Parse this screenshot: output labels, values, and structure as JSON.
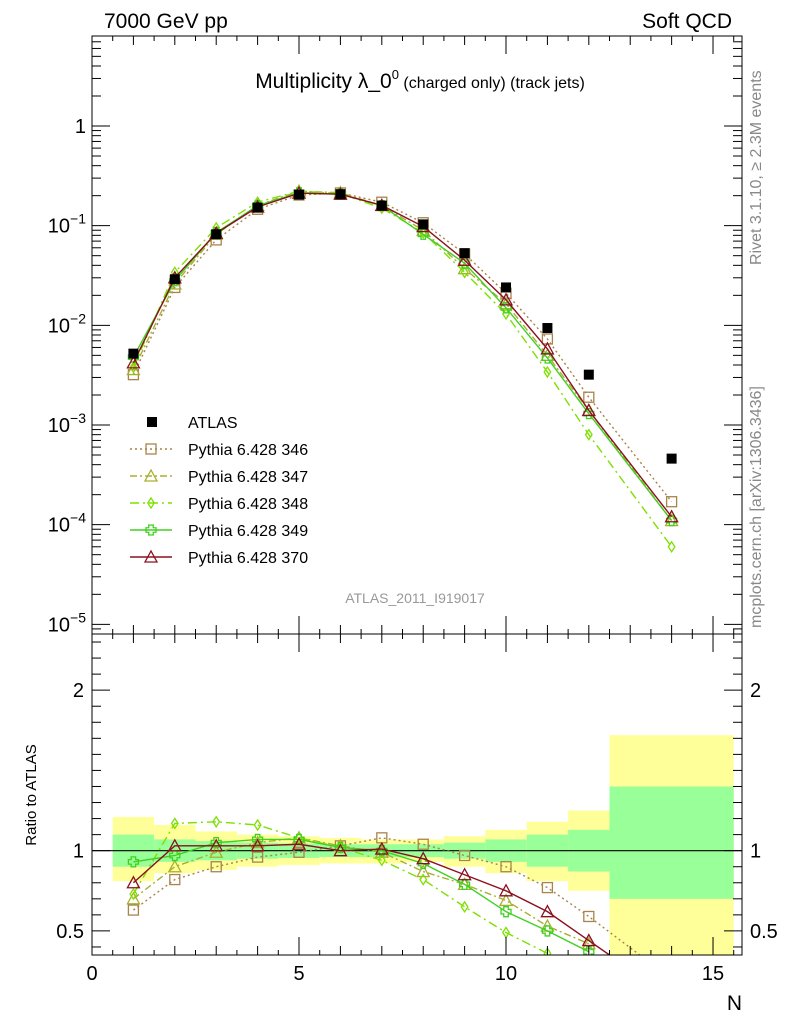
{
  "header": {
    "left": "7000 GeV pp",
    "right": "Soft QCD",
    "title_main": "Multiplicity λ_0",
    "title_sup": "0",
    "title_sub": " (charged only) (track jets)",
    "ref_id": "ATLAS_2011_I919017",
    "side_top": "Rivet 3.1.10, ≥ 2.3M events",
    "side_bottom": "mcplots.cern.ch [arXiv:1306.3436]"
  },
  "chart_data": [
    {
      "type": "line",
      "panel": "main",
      "yscale": "log",
      "xlim": [
        0,
        15.7
      ],
      "ylim": [
        8e-06,
        8
      ],
      "ytick_labels": [
        "1",
        "10",
        "10",
        "10",
        "10",
        "10"
      ],
      "ytick_exponents": [
        "",
        "−1",
        "−2",
        "−3",
        "−4",
        "−5"
      ],
      "legend_position": "middle-left",
      "data": {
        "x": [
          1,
          2,
          3,
          4,
          5,
          6,
          7,
          8,
          9,
          10,
          11,
          12,
          14
        ],
        "y": [
          0.0052,
          0.029,
          0.082,
          0.152,
          0.205,
          0.207,
          0.159,
          0.103,
          0.053,
          0.024,
          0.0094,
          0.0032,
          0.00046
        ],
        "name": "ATLAS",
        "color": "#000000"
      },
      "series": [
        {
          "name": "Pythia 6.428 346",
          "color": "#a8844a",
          "marker": "square",
          "dash": "2,3",
          "values": [
            0.0032,
            0.024,
            0.072,
            0.146,
            0.203,
            0.213,
            0.172,
            0.107,
            0.052,
            0.021,
            0.0073,
            0.0019,
            0.00017
          ]
        },
        {
          "name": "Pythia 6.428 347",
          "color": "#a8b030",
          "marker": "triangle",
          "dash": "7,3,2,3",
          "values": [
            0.0036,
            0.026,
            0.082,
            0.16,
            0.222,
            0.214,
            0.159,
            0.09,
            0.037,
            0.0165,
            0.005,
            0.0014,
            0.00011
          ]
        },
        {
          "name": "Pythia 6.428 348",
          "color": "#7ee000",
          "marker": "diamond",
          "dash": "9,4,2,4",
          "values": [
            0.0038,
            0.034,
            0.095,
            0.172,
            0.222,
            0.21,
            0.15,
            0.085,
            0.034,
            0.013,
            0.0034,
            0.0008,
            6e-05
          ]
        },
        {
          "name": "Pythia 6.428 349",
          "color": "#40d020",
          "marker": "cross",
          "dash": "",
          "values": [
            0.0048,
            0.028,
            0.085,
            0.159,
            0.214,
            0.207,
            0.159,
            0.082,
            0.042,
            0.015,
            0.0047,
            0.0013,
            0.00011
          ]
        },
        {
          "name": "Pythia 6.428 370",
          "color": "#8b1020",
          "marker": "triangle",
          "dash": "",
          "values": [
            0.0042,
            0.03,
            0.084,
            0.154,
            0.212,
            0.207,
            0.16,
            0.098,
            0.045,
            0.018,
            0.0058,
            0.0014,
            0.00012
          ]
        }
      ]
    },
    {
      "type": "line",
      "panel": "ratio",
      "ylabel": "Ratio to ATLAS",
      "xlabel": "N",
      "xlim": [
        0,
        15.7
      ],
      "ylim": [
        0.35,
        2.35
      ],
      "xticks": [
        0,
        5,
        10,
        15
      ],
      "yticks": [
        0.5,
        1,
        2
      ],
      "bands": [
        {
          "x0": 0.5,
          "x1": 1.5,
          "y_lo": 0.81,
          "y_hi": 1.21,
          "g_lo": 0.9,
          "g_hi": 1.1
        },
        {
          "x0": 1.5,
          "x1": 2.5,
          "y_lo": 0.86,
          "y_hi": 1.16,
          "g_lo": 0.93,
          "g_hi": 1.07
        },
        {
          "x0": 2.5,
          "x1": 3.5,
          "y_lo": 0.88,
          "y_hi": 1.12,
          "g_lo": 0.94,
          "g_hi": 1.06
        },
        {
          "x0": 3.5,
          "x1": 4.5,
          "y_lo": 0.9,
          "y_hi": 1.1,
          "g_lo": 0.95,
          "g_hi": 1.05
        },
        {
          "x0": 4.5,
          "x1": 5.5,
          "y_lo": 0.91,
          "y_hi": 1.09,
          "g_lo": 0.955,
          "g_hi": 1.045
        },
        {
          "x0": 5.5,
          "x1": 6.5,
          "y_lo": 0.92,
          "y_hi": 1.08,
          "g_lo": 0.96,
          "g_hi": 1.04
        },
        {
          "x0": 6.5,
          "x1": 7.5,
          "y_lo": 0.92,
          "y_hi": 1.07,
          "g_lo": 0.96,
          "g_hi": 1.04
        },
        {
          "x0": 7.5,
          "x1": 8.5,
          "y_lo": 0.93,
          "y_hi": 1.07,
          "g_lo": 0.96,
          "g_hi": 1.04
        },
        {
          "x0": 8.5,
          "x1": 9.5,
          "y_lo": 0.9,
          "y_hi": 1.09,
          "g_lo": 0.95,
          "g_hi": 1.05
        },
        {
          "x0": 9.5,
          "x1": 10.5,
          "y_lo": 0.86,
          "y_hi": 1.13,
          "g_lo": 0.93,
          "g_hi": 1.07
        },
        {
          "x0": 10.5,
          "x1": 11.5,
          "y_lo": 0.81,
          "y_hi": 1.18,
          "g_lo": 0.9,
          "g_hi": 1.1
        },
        {
          "x0": 11.5,
          "x1": 12.5,
          "y_lo": 0.75,
          "y_hi": 1.25,
          "g_lo": 0.87,
          "g_hi": 1.13
        },
        {
          "x0": 12.5,
          "x1": 15.5,
          "y_lo": 0.0,
          "y_hi": 1.72,
          "g_lo": 0.7,
          "g_hi": 1.4
        }
      ],
      "series": [
        {
          "name": "Pythia 6.428 346",
          "color": "#a8844a",
          "marker": "square",
          "dash": "2,3",
          "x": [
            1,
            2,
            3,
            4,
            5,
            6,
            7,
            8,
            9,
            10,
            11,
            12,
            14
          ],
          "values": [
            0.63,
            0.82,
            0.9,
            0.96,
            0.99,
            1.03,
            1.08,
            1.04,
            0.97,
            0.9,
            0.77,
            0.59,
            0.2
          ]
        },
        {
          "name": "Pythia 6.428 347",
          "color": "#a8b030",
          "marker": "triangle",
          "dash": "7,3,2,3",
          "x": [
            1,
            2,
            3,
            4,
            5,
            6,
            7,
            8,
            9,
            10,
            11,
            12
          ],
          "values": [
            0.7,
            0.9,
            0.99,
            1.05,
            1.08,
            1.03,
            0.99,
            0.87,
            0.79,
            0.69,
            0.53,
            0.42
          ]
        },
        {
          "name": "Pythia 6.428 348",
          "color": "#7ee000",
          "marker": "diamond",
          "dash": "9,4,2,4",
          "x": [
            1,
            2,
            3,
            4,
            5,
            6,
            7,
            8,
            9,
            10,
            11,
            12
          ],
          "values": [
            0.73,
            1.17,
            1.18,
            1.16,
            1.08,
            1.02,
            0.94,
            0.82,
            0.65,
            0.49,
            0.36,
            0.2
          ]
        },
        {
          "name": "Pythia 6.428 349",
          "color": "#40d020",
          "marker": "cross",
          "dash": "",
          "x": [
            1,
            2,
            3,
            4,
            5,
            6,
            7,
            8,
            9,
            10,
            11,
            12
          ],
          "values": [
            0.93,
            0.97,
            1.05,
            1.07,
            1.07,
            1.02,
            1.0,
            0.92,
            0.79,
            0.62,
            0.5,
            0.37
          ]
        },
        {
          "name": "Pythia 6.428 370",
          "color": "#8b1020",
          "marker": "triangle",
          "dash": "",
          "x": [
            1,
            2,
            3,
            4,
            5,
            6,
            7,
            8,
            9,
            10,
            11,
            12,
            12.5
          ],
          "values": [
            0.8,
            1.03,
            1.03,
            1.03,
            1.04,
            1.0,
            1.01,
            0.95,
            0.85,
            0.75,
            0.62,
            0.44,
            0.35
          ]
        }
      ]
    }
  ]
}
